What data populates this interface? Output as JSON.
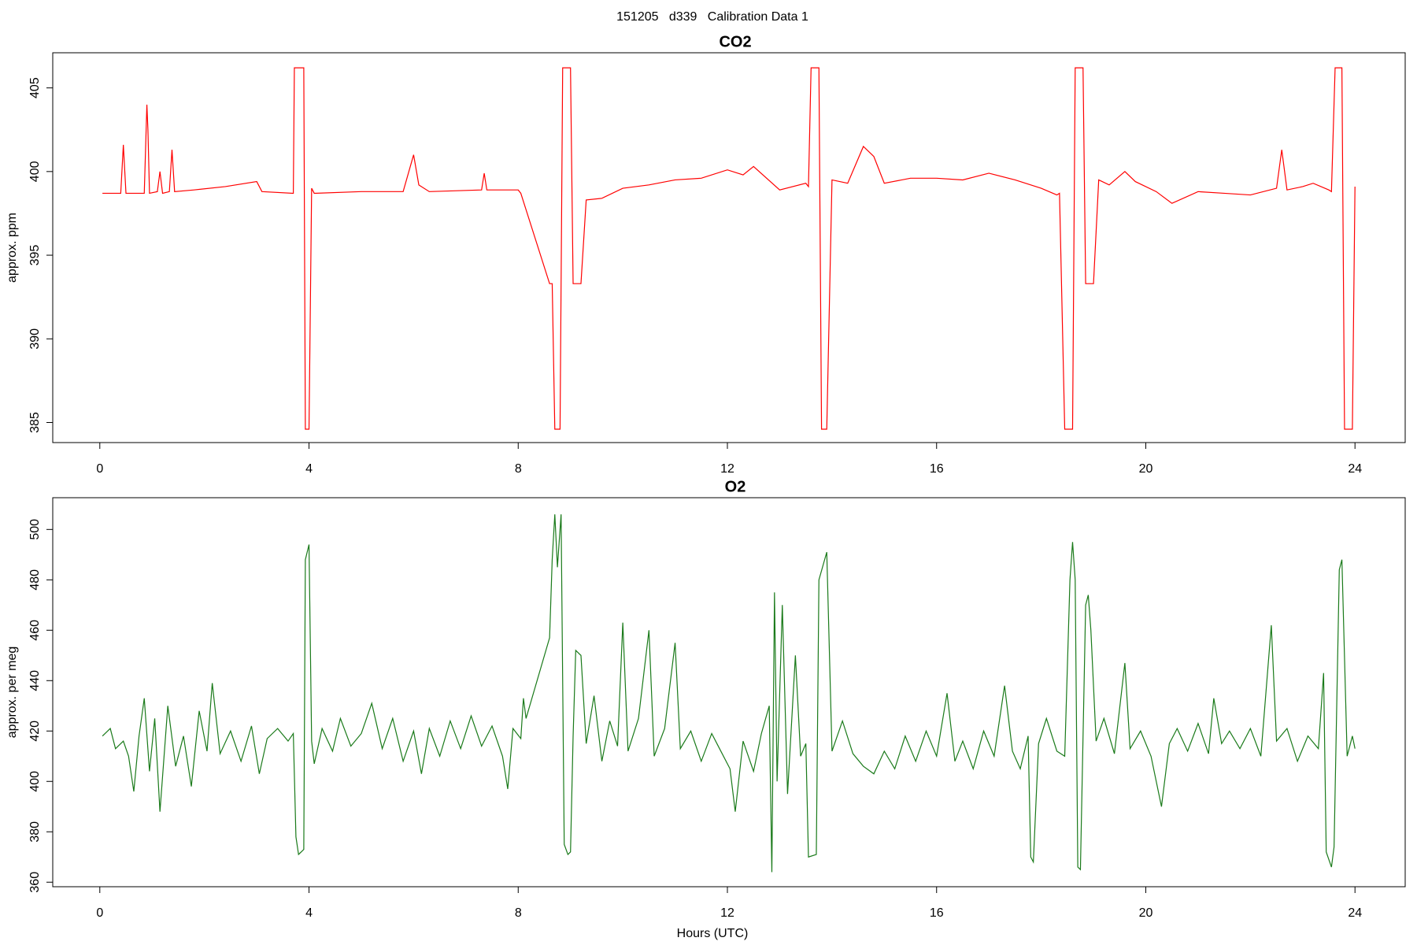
{
  "title": "151205   d339   Calibration Data 1",
  "chart_data": [
    {
      "type": "line",
      "title": "CO2",
      "ylabel": "approx. ppm",
      "color": "#ff0000",
      "x": [
        0.05,
        0.4,
        0.45,
        0.5,
        0.85,
        0.9,
        0.92,
        0.95,
        1.1,
        1.15,
        1.2,
        1.33,
        1.38,
        1.43,
        1.8,
        2.4,
        3.0,
        3.1,
        3.7,
        3.72,
        3.9,
        3.93,
        4.0,
        4.05,
        4.1,
        5.0,
        5.8,
        6.0,
        6.1,
        6.3,
        7.3,
        7.35,
        7.4,
        8.0,
        8.05,
        8.6,
        8.65,
        8.7,
        8.8,
        8.85,
        8.9,
        9.0,
        9.05,
        9.2,
        9.3,
        9.6,
        10.0,
        10.5,
        11.0,
        11.5,
        12.0,
        12.3,
        12.5,
        13.0,
        13.5,
        13.55,
        13.6,
        13.75,
        13.8,
        13.9,
        14.0,
        14.3,
        14.6,
        14.8,
        15.0,
        15.5,
        16.0,
        16.5,
        17.0,
        17.5,
        18.0,
        18.3,
        18.35,
        18.45,
        18.6,
        18.65,
        18.8,
        18.85,
        19.0,
        19.1,
        19.3,
        19.6,
        19.8,
        20.2,
        20.5,
        21.0,
        21.5,
        22.0,
        22.5,
        22.6,
        22.7,
        23.0,
        23.2,
        23.5,
        23.55,
        23.62,
        23.75,
        23.8,
        23.95,
        24.0
      ],
      "values": [
        398.7,
        398.7,
        401.6,
        398.7,
        398.7,
        404,
        402.5,
        398.7,
        398.8,
        400,
        398.7,
        398.8,
        401.3,
        398.8,
        398.9,
        399.1,
        399.4,
        398.8,
        398.7,
        406.2,
        406.2,
        384.6,
        384.6,
        399,
        398.7,
        398.8,
        398.8,
        401,
        399.2,
        398.8,
        398.9,
        399.9,
        398.9,
        398.9,
        398.7,
        393.3,
        393.3,
        384.6,
        384.6,
        406.2,
        406.2,
        406.2,
        393.3,
        393.3,
        398.3,
        398.4,
        399,
        399.2,
        399.5,
        399.6,
        400.1,
        399.8,
        400.3,
        398.9,
        399.3,
        399.1,
        406.2,
        406.2,
        384.6,
        384.6,
        399.5,
        399.3,
        401.5,
        400.9,
        399.3,
        399.6,
        399.6,
        399.5,
        399.9,
        399.5,
        399,
        398.6,
        398.7,
        384.6,
        384.6,
        406.2,
        406.2,
        393.3,
        393.3,
        399.5,
        399.2,
        400,
        399.4,
        398.8,
        398.1,
        398.8,
        398.7,
        398.6,
        399,
        401.3,
        398.9,
        399.1,
        399.3,
        398.9,
        398.8,
        406.2,
        406.2,
        384.6,
        384.6,
        399.1
      ],
      "xlim": [
        -0.9,
        24.96
      ],
      "xticks": [
        0,
        4,
        8,
        12,
        16,
        20,
        24
      ],
      "ylim": [
        383.8,
        407.1
      ],
      "yticks": [
        385,
        390,
        395,
        400,
        405
      ]
    },
    {
      "type": "line",
      "title": "O2",
      "ylabel": "approx. per meg",
      "xlabel": "Hours (UTC)",
      "color": "#1a7a1a",
      "x": [
        0.05,
        0.2,
        0.3,
        0.45,
        0.55,
        0.65,
        0.75,
        0.85,
        0.95,
        1.05,
        1.15,
        1.3,
        1.45,
        1.6,
        1.75,
        1.9,
        2.05,
        2.15,
        2.3,
        2.5,
        2.7,
        2.9,
        3.05,
        3.2,
        3.4,
        3.6,
        3.7,
        3.75,
        3.8,
        3.9,
        3.93,
        4.0,
        4.05,
        4.1,
        4.25,
        4.45,
        4.6,
        4.8,
        5.0,
        5.2,
        5.4,
        5.6,
        5.8,
        6.0,
        6.15,
        6.3,
        6.5,
        6.7,
        6.9,
        7.1,
        7.3,
        7.5,
        7.7,
        7.8,
        7.9,
        8.05,
        8.1,
        8.15,
        8.6,
        8.65,
        8.7,
        8.75,
        8.82,
        8.88,
        8.95,
        9.0,
        9.05,
        9.1,
        9.2,
        9.3,
        9.45,
        9.6,
        9.75,
        9.9,
        10.0,
        10.1,
        10.3,
        10.5,
        10.6,
        10.8,
        11.0,
        11.1,
        11.3,
        11.5,
        11.7,
        11.9,
        12.05,
        12.15,
        12.3,
        12.5,
        12.65,
        12.8,
        12.85,
        12.9,
        12.95,
        13.05,
        13.15,
        13.3,
        13.4,
        13.5,
        13.55,
        13.7,
        13.75,
        13.9,
        14.0,
        14.2,
        14.4,
        14.6,
        14.8,
        15.0,
        15.2,
        15.4,
        15.6,
        15.8,
        16.0,
        16.2,
        16.35,
        16.5,
        16.7,
        16.9,
        17.1,
        17.3,
        17.45,
        17.6,
        17.75,
        17.8,
        17.85,
        17.95,
        18.1,
        18.3,
        18.45,
        18.55,
        18.6,
        18.65,
        18.7,
        18.75,
        18.85,
        18.9,
        18.95,
        19.05,
        19.2,
        19.4,
        19.6,
        19.7,
        19.9,
        20.1,
        20.3,
        20.45,
        20.6,
        20.8,
        21.0,
        21.2,
        21.3,
        21.45,
        21.6,
        21.8,
        22.0,
        22.2,
        22.4,
        22.5,
        22.7,
        22.9,
        23.1,
        23.3,
        23.4,
        23.45,
        23.55,
        23.6,
        23.7,
        23.75,
        23.85,
        23.95,
        24.0
      ],
      "values": [
        418,
        421,
        413,
        416,
        410,
        396,
        418,
        433,
        404,
        425,
        388,
        430,
        406,
        418,
        398,
        428,
        412,
        439,
        411,
        420,
        408,
        422,
        403,
        417,
        421,
        416,
        419,
        378,
        371,
        373,
        488,
        494,
        416,
        407,
        421,
        412,
        425,
        414,
        419,
        431,
        413,
        425,
        408,
        420,
        403,
        421,
        410,
        424,
        413,
        426,
        414,
        422,
        410,
        397,
        421,
        417,
        433,
        425,
        457,
        488,
        506,
        485,
        506,
        375,
        371,
        372,
        418,
        452,
        450,
        415,
        434,
        408,
        424,
        414,
        463,
        412,
        425,
        460,
        410,
        421,
        455,
        413,
        420,
        408,
        419,
        411,
        405,
        388,
        416,
        404,
        419,
        430,
        364,
        475,
        400,
        470,
        395,
        450,
        410,
        415,
        370,
        371,
        480,
        491,
        412,
        424,
        411,
        406,
        403,
        412,
        405,
        418,
        408,
        420,
        410,
        435,
        408,
        416,
        405,
        420,
        410,
        438,
        412,
        405,
        418,
        370,
        368,
        415,
        425,
        412,
        410,
        480,
        495,
        480,
        366,
        365,
        470,
        474,
        460,
        416,
        425,
        411,
        447,
        413,
        420,
        410,
        390,
        415,
        421,
        412,
        423,
        411,
        433,
        415,
        420,
        413,
        421,
        410,
        462,
        416,
        421,
        408,
        418,
        413,
        443,
        372,
        366,
        374,
        484,
        488,
        410,
        418,
        413
      ],
      "xlim": [
        -0.9,
        24.96
      ],
      "xticks": [
        0,
        4,
        8,
        12,
        16,
        20,
        24
      ],
      "ylim": [
        358.2,
        512.6
      ],
      "yticks": [
        360,
        380,
        400,
        420,
        440,
        460,
        480,
        500
      ]
    }
  ]
}
